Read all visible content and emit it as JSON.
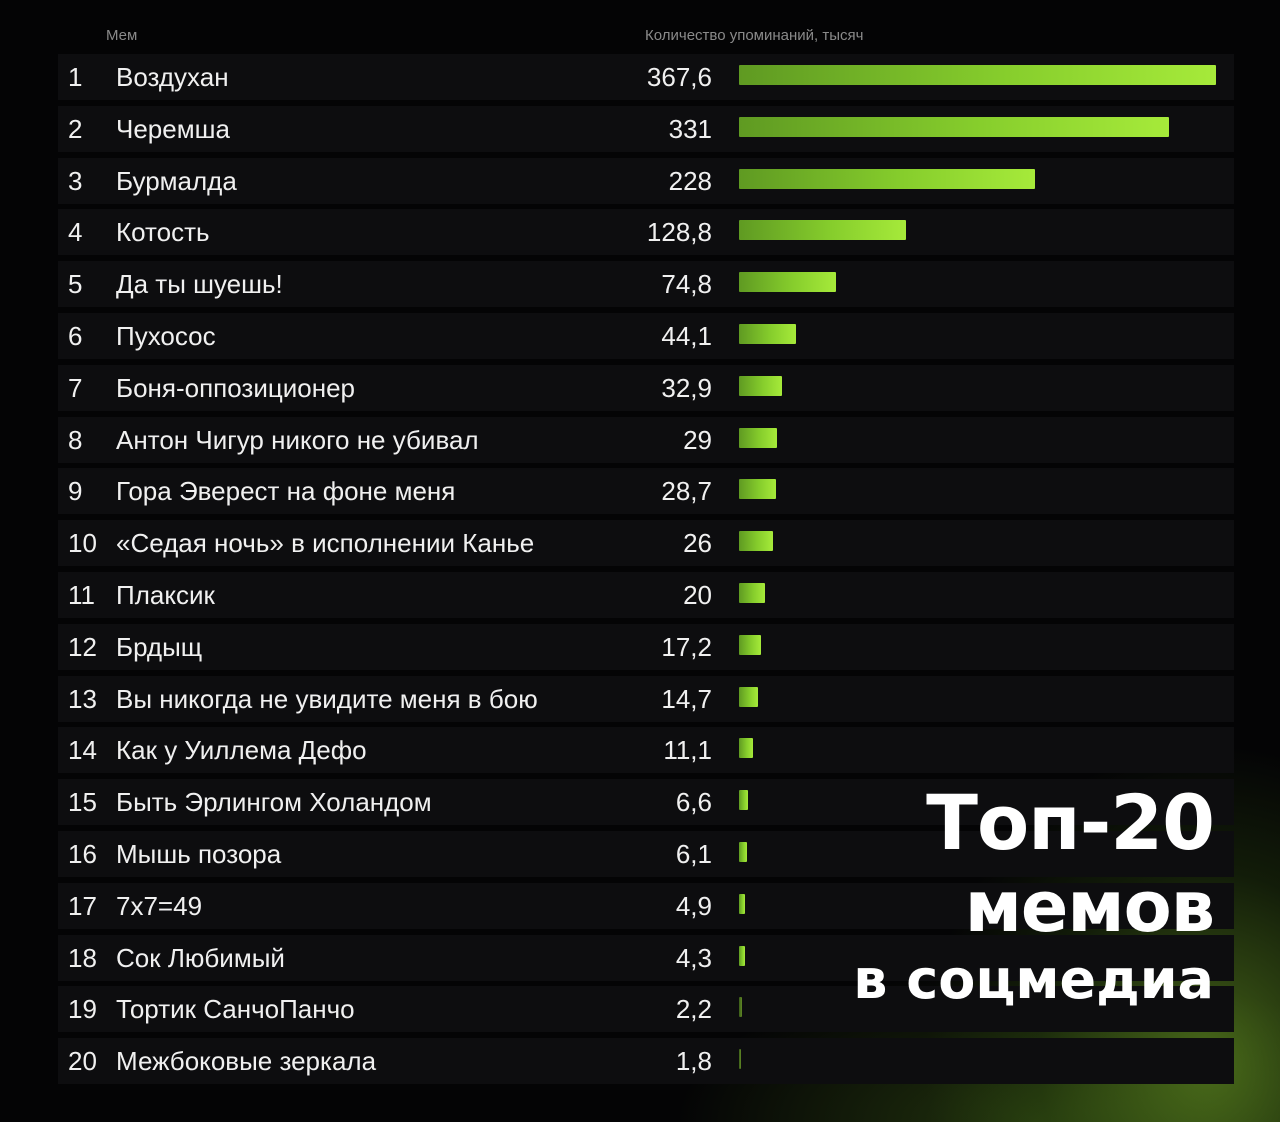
{
  "chart_data": {
    "type": "bar",
    "orientation": "horizontal",
    "title_lines": [
      "Топ-20",
      "мемов",
      "в соцмедиа"
    ],
    "column_headers": {
      "meme": "Мем",
      "count": "Количество упоминаний, тысяч"
    },
    "ranks": [
      "1",
      "2",
      "3",
      "4",
      "5",
      "6",
      "7",
      "8",
      "9",
      "10",
      "11",
      "12",
      "13",
      "14",
      "15",
      "16",
      "17",
      "18",
      "19",
      "20"
    ],
    "categories": [
      "Воздухан",
      "Черемша",
      "Бурмалда",
      "Котость",
      "Да ты шуешь!",
      "Пухосос",
      "Боня-оппозиционер",
      "Антон Чигур никого не убивал",
      "Гора Эверест на фоне меня",
      "«Седая ночь» в исполнении Канье",
      "Плаксик",
      "Брдыщ",
      "Вы никогда не увидите меня в бою",
      "Как у Уиллема Дефо",
      "Быть Эрлингом Холандом",
      "Мышь позора",
      "7х7=49",
      "Сок Любимый",
      "Тортик СанчоПанчо",
      "Межбоковые зеркала"
    ],
    "values": [
      367.6,
      331,
      228,
      128.8,
      74.8,
      44.1,
      32.9,
      29,
      28.7,
      26,
      20,
      17.2,
      14.7,
      11.1,
      6.6,
      6.1,
      4.9,
      4.3,
      2.2,
      1.8
    ],
    "value_labels": [
      "367,6",
      "331",
      "228",
      "128,8",
      "74,8",
      "44,1",
      "32,9",
      "29",
      "28,7",
      "26",
      "20",
      "17,2",
      "14,7",
      "11,1",
      "6,6",
      "6,1",
      "4,9",
      "4,3",
      "2,2",
      "1,8"
    ],
    "xlim": [
      0,
      367.6
    ],
    "bar_color": "#86cd2c",
    "gridlines": false,
    "legend": "none"
  }
}
